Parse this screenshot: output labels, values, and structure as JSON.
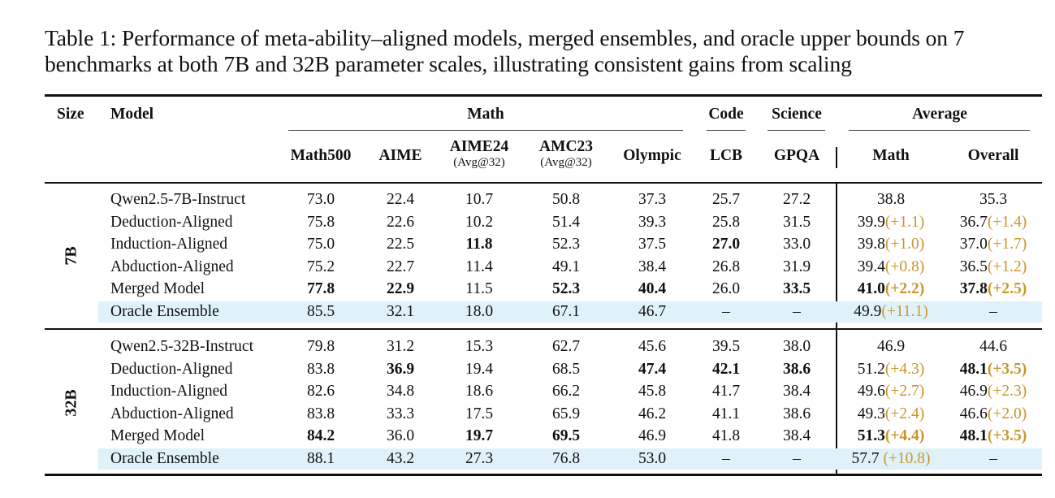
{
  "caption": "Table 1: Performance of meta-ability–aligned models, merged ensembles, and oracle upper bounds on 7 benchmarks at both 7B and 32B parameter scales, illustrating consistent gains from scaling",
  "header": {
    "size": "Size",
    "model": "Model",
    "groups": {
      "math": "Math",
      "code": "Code",
      "science": "Science",
      "average": "Average"
    },
    "columns": [
      {
        "name": "Math500",
        "sub": ""
      },
      {
        "name": "AIME",
        "sub": ""
      },
      {
        "name": "AIME24",
        "sub": "(Avg@32)"
      },
      {
        "name": "AMC23",
        "sub": "(Avg@32)"
      },
      {
        "name": "Olympic",
        "sub": ""
      },
      {
        "name": "LCB",
        "sub": ""
      },
      {
        "name": "GPQA",
        "sub": ""
      },
      {
        "name": "Math",
        "sub": ""
      },
      {
        "name": "Overall",
        "sub": ""
      }
    ]
  },
  "sections": [
    {
      "size": "7B",
      "rows": [
        {
          "model": "Qwen2.5-7B-Instruct",
          "highlight": false,
          "cells": [
            {
              "v": "73.0",
              "b": false
            },
            {
              "v": "22.4",
              "b": false
            },
            {
              "v": "10.7",
              "b": false
            },
            {
              "v": "50.8",
              "b": false
            },
            {
              "v": "37.3",
              "b": false
            },
            {
              "v": "25.7",
              "b": false
            },
            {
              "v": "27.2",
              "b": false
            },
            {
              "v": "38.8",
              "d": "",
              "b": false
            },
            {
              "v": "35.3",
              "d": "",
              "b": false
            }
          ]
        },
        {
          "model": "Deduction-Aligned",
          "highlight": false,
          "cells": [
            {
              "v": "75.8",
              "b": false
            },
            {
              "v": "22.6",
              "b": false
            },
            {
              "v": "10.2",
              "b": false
            },
            {
              "v": "51.4",
              "b": false
            },
            {
              "v": "39.3",
              "b": false
            },
            {
              "v": "25.8",
              "b": false
            },
            {
              "v": "31.5",
              "b": false
            },
            {
              "v": "39.9",
              "d": "(+1.1)",
              "b": false
            },
            {
              "v": "36.7",
              "d": "(+1.4)",
              "b": false
            }
          ]
        },
        {
          "model": "Induction-Aligned",
          "highlight": false,
          "cells": [
            {
              "v": "75.0",
              "b": false
            },
            {
              "v": "22.5",
              "b": false
            },
            {
              "v": "11.8",
              "b": true
            },
            {
              "v": "52.3",
              "b": false
            },
            {
              "v": "37.5",
              "b": false
            },
            {
              "v": "27.0",
              "b": true
            },
            {
              "v": "33.0",
              "b": false
            },
            {
              "v": "39.8",
              "d": "(+1.0)",
              "b": false
            },
            {
              "v": "37.0",
              "d": "(+1.7)",
              "b": false
            }
          ]
        },
        {
          "model": "Abduction-Aligned",
          "highlight": false,
          "cells": [
            {
              "v": "75.2",
              "b": false
            },
            {
              "v": "22.7",
              "b": false
            },
            {
              "v": "11.4",
              "b": false
            },
            {
              "v": "49.1",
              "b": false
            },
            {
              "v": "38.4",
              "b": false
            },
            {
              "v": "26.8",
              "b": false
            },
            {
              "v": "31.9",
              "b": false
            },
            {
              "v": "39.4",
              "d": "(+0.8)",
              "b": false
            },
            {
              "v": "36.5",
              "d": "(+1.2)",
              "b": false
            }
          ]
        },
        {
          "model": "Merged Model",
          "highlight": false,
          "cells": [
            {
              "v": "77.8",
              "b": true
            },
            {
              "v": "22.9",
              "b": true
            },
            {
              "v": "11.5",
              "b": false
            },
            {
              "v": "52.3",
              "b": true
            },
            {
              "v": "40.4",
              "b": true
            },
            {
              "v": "26.0",
              "b": false
            },
            {
              "v": "33.5",
              "b": true
            },
            {
              "v": "41.0",
              "d": "(+2.2)",
              "b": true
            },
            {
              "v": "37.8",
              "d": "(+2.5)",
              "b": true
            }
          ]
        },
        {
          "model": "Oracle Ensemble",
          "highlight": true,
          "cells": [
            {
              "v": "85.5",
              "b": false
            },
            {
              "v": "32.1",
              "b": false
            },
            {
              "v": "18.0",
              "b": false
            },
            {
              "v": "67.1",
              "b": false
            },
            {
              "v": "46.7",
              "b": false
            },
            {
              "v": "–",
              "b": false
            },
            {
              "v": "–",
              "b": false
            },
            {
              "v": "49.9",
              "d": "(+11.1)",
              "b": false
            },
            {
              "v": "–",
              "d": "",
              "b": false
            }
          ]
        }
      ]
    },
    {
      "size": "32B",
      "rows": [
        {
          "model": "Qwen2.5-32B-Instruct",
          "highlight": false,
          "cells": [
            {
              "v": "79.8",
              "b": false
            },
            {
              "v": "31.2",
              "b": false
            },
            {
              "v": "15.3",
              "b": false
            },
            {
              "v": "62.7",
              "b": false
            },
            {
              "v": "45.6",
              "b": false
            },
            {
              "v": "39.5",
              "b": false
            },
            {
              "v": "38.0",
              "b": false
            },
            {
              "v": "46.9",
              "d": "",
              "b": false
            },
            {
              "v": "44.6",
              "d": "",
              "b": false
            }
          ]
        },
        {
          "model": "Deduction-Aligned",
          "highlight": false,
          "cells": [
            {
              "v": "83.8",
              "b": false
            },
            {
              "v": "36.9",
              "b": true
            },
            {
              "v": "19.4",
              "b": false
            },
            {
              "v": "68.5",
              "b": false
            },
            {
              "v": "47.4",
              "b": true
            },
            {
              "v": "42.1",
              "b": true
            },
            {
              "v": "38.6",
              "b": true
            },
            {
              "v": "51.2",
              "d": "(+4.3)",
              "b": false
            },
            {
              "v": "48.1",
              "d": "(+3.5)",
              "b": true
            }
          ]
        },
        {
          "model": "Induction-Aligned",
          "highlight": false,
          "cells": [
            {
              "v": "82.6",
              "b": false
            },
            {
              "v": "34.8",
              "b": false
            },
            {
              "v": "18.6",
              "b": false
            },
            {
              "v": "66.2",
              "b": false
            },
            {
              "v": "45.8",
              "b": false
            },
            {
              "v": "41.7",
              "b": false
            },
            {
              "v": "38.4",
              "b": false
            },
            {
              "v": "49.6",
              "d": "(+2.7)",
              "b": false
            },
            {
              "v": "46.9",
              "d": "(+2.3)",
              "b": false
            }
          ]
        },
        {
          "model": "Abduction-Aligned",
          "highlight": false,
          "cells": [
            {
              "v": "83.8",
              "b": false
            },
            {
              "v": "33.3",
              "b": false
            },
            {
              "v": "17.5",
              "b": false
            },
            {
              "v": "65.9",
              "b": false
            },
            {
              "v": "46.2",
              "b": false
            },
            {
              "v": "41.1",
              "b": false
            },
            {
              "v": "38.6",
              "b": false
            },
            {
              "v": "49.3",
              "d": "(+2.4)",
              "b": false
            },
            {
              "v": "46.6",
              "d": "(+2.0)",
              "b": false
            }
          ]
        },
        {
          "model": "Merged Model",
          "highlight": false,
          "cells": [
            {
              "v": "84.2",
              "b": true
            },
            {
              "v": "36.0",
              "b": false
            },
            {
              "v": "19.7",
              "b": true
            },
            {
              "v": "69.5",
              "b": true
            },
            {
              "v": "46.9",
              "b": false
            },
            {
              "v": "41.8",
              "b": false
            },
            {
              "v": "38.4",
              "b": false
            },
            {
              "v": "51.3",
              "d": "(+4.4)",
              "b": true
            },
            {
              "v": "48.1",
              "d": "(+3.5)",
              "b": true
            }
          ]
        },
        {
          "model": "Oracle Ensemble",
          "highlight": true,
          "cells": [
            {
              "v": "88.1",
              "b": false
            },
            {
              "v": "43.2",
              "b": false
            },
            {
              "v": "27.3",
              "b": false
            },
            {
              "v": "76.8",
              "b": false
            },
            {
              "v": "53.0",
              "b": false
            },
            {
              "v": "–",
              "b": false
            },
            {
              "v": "–",
              "b": false
            },
            {
              "v": "57.7",
              "d": " (+10.8)",
              "b": false
            },
            {
              "v": "–",
              "d": "",
              "b": false
            }
          ]
        }
      ]
    }
  ]
}
